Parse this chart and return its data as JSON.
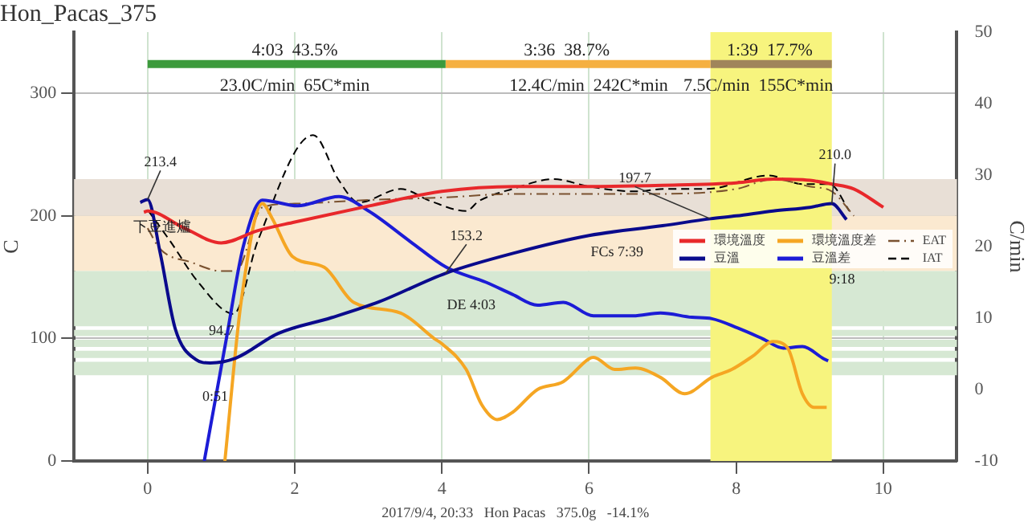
{
  "chart_data": {
    "type": "line",
    "title": "Hon_Pacas_375",
    "xlabel": "2017/9/4, 20:33   Hon Pacas   375.0g   -14.1%",
    "ylabel": "C",
    "y2label": "C/min",
    "xlim": [
      -1,
      11
    ],
    "xticks": [
      0,
      2,
      4,
      6,
      8,
      10
    ],
    "ylim": [
      0,
      350
    ],
    "yticks": [
      0,
      100,
      200,
      300
    ],
    "y2lim": [
      -10,
      50
    ],
    "y2ticks": [
      -10,
      0,
      10,
      20,
      30,
      40,
      50
    ],
    "grid": true,
    "legend": "right",
    "marker": "none",
    "series": [
      {
        "name": "環境溫度",
        "color": "#e8282b",
        "line_style": "solid",
        "x": [
          -0.05,
          0,
          0.5,
          1.0,
          1.5,
          2,
          3,
          4,
          5,
          6,
          7,
          8,
          8.5,
          9,
          9.3,
          9.6,
          10
        ],
        "values": [
          203,
          204,
          190,
          178,
          188,
          195,
          208,
          220,
          224,
          224,
          225,
          227,
          230,
          229,
          226,
          222,
          207
        ]
      },
      {
        "name": "豆溫",
        "color": "#0a0a8c",
        "line_style": "solid",
        "x": [
          -0.1,
          0,
          0.17,
          0.375,
          0.65,
          0.85,
          1.2,
          1.77,
          2.5,
          3.15,
          4.05,
          5,
          6,
          7,
          7.65,
          8,
          8.5,
          9,
          9.3,
          9.5
        ],
        "values": [
          211,
          213.4,
          170,
          108,
          83,
          80,
          84,
          104,
          117,
          130,
          153.2,
          170,
          184,
          192,
          197.7,
          200,
          204,
          207,
          210,
          197
        ]
      },
      {
        "name": "環境溫度差",
        "color": "#f5a623",
        "line_style": "solid",
        "axis": "y2",
        "x": [
          1.05,
          1.27,
          1.56,
          1.69,
          1.97,
          2.4,
          2.8,
          3.44,
          3.9,
          4.0,
          4.33,
          4.54,
          4.75,
          4.96,
          5.3,
          5.65,
          6.0,
          6.06,
          6.35,
          6.63,
          6.97,
          7.3,
          7.67,
          7.94,
          8.23,
          8.5,
          8.7,
          8.9,
          9.06,
          9.23
        ],
        "values": [
          -10,
          12.2,
          26,
          24,
          18.6,
          17.1,
          12.2,
          10.7,
          7.1,
          6.4,
          2.8,
          -2.1,
          -4.2,
          -3.2,
          0,
          1.1,
          4.3,
          4.5,
          2.8,
          3,
          1.7,
          -0.6,
          1.7,
          2.8,
          4.7,
          6.7,
          5.8,
          -0.6,
          -2.5,
          -2.5
        ]
      },
      {
        "name": "豆溫差",
        "color": "#1c1cd6",
        "line_style": "solid",
        "axis": "y2",
        "x": [
          0.77,
          1.07,
          1.3,
          1.56,
          2.04,
          2.6,
          3.0,
          3.57,
          4.06,
          4.6,
          4.96,
          5.3,
          5.65,
          6.06,
          6.6,
          6.97,
          7.4,
          7.67,
          8.02,
          8.36,
          8.64,
          8.9,
          9.19,
          9.25
        ],
        "values": [
          -10,
          7.1,
          20,
          26.5,
          25.7,
          27,
          25,
          20.7,
          17.1,
          15,
          13.3,
          11.8,
          12.2,
          10.3,
          10.3,
          10.7,
          10.1,
          9.9,
          8.6,
          7.1,
          5.8,
          6,
          4.3,
          4
        ]
      },
      {
        "name": "EAT",
        "color": "#7a5230",
        "line_style": "dashdot",
        "x": [
          0,
          0.17,
          0.6,
          1.0,
          1.2,
          1.56,
          2,
          3,
          4,
          5,
          6,
          7,
          8,
          8.5,
          9,
          9.3,
          9.6
        ],
        "values": [
          190,
          173,
          162,
          155,
          155,
          207,
          210,
          213,
          215,
          218,
          218,
          218,
          222,
          230,
          224,
          220,
          200
        ]
      },
      {
        "name": "IAT",
        "color": "#000000",
        "line_style": "dashed",
        "x": [
          0,
          0.3,
          0.7,
          1.17,
          1.5,
          2.25,
          2.6,
          2.87,
          3.44,
          3.85,
          4.33,
          4.5,
          4.96,
          5.52,
          6,
          6.63,
          7.04,
          7.6,
          8.44,
          8.9,
          9.27,
          9.54
        ],
        "values": [
          205,
          180,
          145,
          120,
          180,
          266,
          229,
          211,
          222,
          212,
          204,
          212,
          222,
          230,
          224,
          220,
          222,
          222,
          233,
          226,
          226,
          204
        ]
      },
      {
        "color": "#3c9a3c",
        "line_style": "solid",
        "x": [
          0,
          4.05
        ],
        "values": [
          324,
          324
        ]
      },
      {
        "color": "#f5b041",
        "line_style": "solid",
        "x": [
          4.05,
          7.65
        ],
        "values": [
          324,
          324
        ]
      },
      {
        "color": "#a0855b",
        "line_style": "solid",
        "x": [
          7.65,
          9.3
        ],
        "values": [
          324,
          324
        ]
      }
    ],
    "bands": [
      {
        "axis": "y",
        "from": 200,
        "to": 230,
        "color": "#e8dfd6"
      },
      {
        "axis": "y",
        "from": 155,
        "to": 200,
        "color": "#fbe9d0"
      },
      {
        "axis": "y",
        "from": 110,
        "to": 155,
        "color": "#d6e8d3"
      },
      {
        "axis": "y",
        "from": 102,
        "to": 107,
        "color": "#d6e8d3"
      },
      {
        "axis": "y",
        "from": 93,
        "to": 99,
        "color": "#d6e8d3"
      },
      {
        "axis": "y",
        "from": 84,
        "to": 90,
        "color": "#d6e8d3"
      },
      {
        "axis": "y",
        "from": 70,
        "to": 81,
        "color": "#d6e8d3"
      },
      {
        "axis": "x",
        "from": 7.65,
        "to": 9.3,
        "color": "#f7f47e"
      }
    ],
    "annotations": [
      "4:03  43.5%",
      "23.0C/min  65C*min",
      "3:36  38.7%",
      "12.4C/min  242C*min",
      "1:39  17.7%",
      "7.5C/min  155C*min",
      {
        "text": "213.4",
        "x": 0,
        "y": 213.4
      },
      "下豆進爐",
      "94.7",
      "0:51",
      {
        "text": "153.2",
        "x": 4.05,
        "y": 153.2
      },
      "DE 4:03",
      {
        "text": "197.7",
        "x": 7.65,
        "y": 197.7
      },
      "FCs 7:39",
      {
        "text": "210.0",
        "x": 9.3,
        "y": 210
      },
      "9:18"
    ]
  }
}
